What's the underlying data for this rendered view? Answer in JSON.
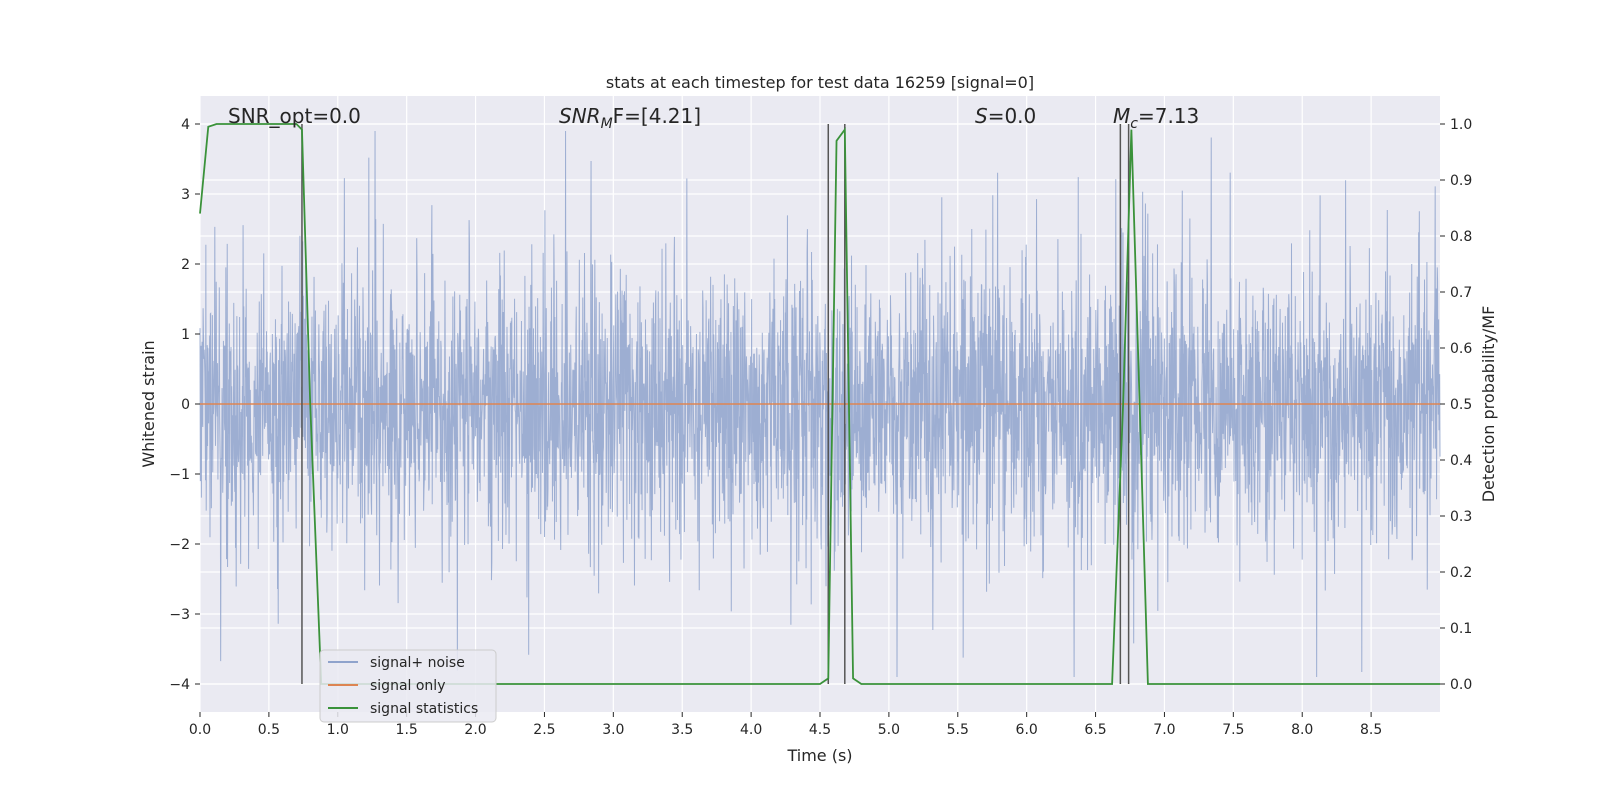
{
  "chart_data": {
    "type": "line",
    "title": "stats at each timestep for test data 16259 [signal=0]",
    "xlabel": "Time (s)",
    "ylabel": "Whitened strain",
    "ylabel_right": "Detection probability/MF",
    "xlim": [
      0.0,
      9.0
    ],
    "ylim": [
      -4.4,
      4.4
    ],
    "ylim_right": [
      -0.05,
      1.05
    ],
    "xticks": [
      0.0,
      0.5,
      1.0,
      1.5,
      2.0,
      2.5,
      3.0,
      3.5,
      4.0,
      4.5,
      5.0,
      5.5,
      6.0,
      6.5,
      7.0,
      7.5,
      8.0,
      8.5
    ],
    "yticks": [
      -4,
      -3,
      -2,
      -1,
      0,
      1,
      2,
      3,
      4
    ],
    "yticks_right": [
      0.0,
      0.1,
      0.2,
      0.3,
      0.4,
      0.5,
      0.6,
      0.7,
      0.8,
      0.9,
      1.0
    ],
    "xtick_labels": [
      "0.0",
      "0.5",
      "1.0",
      "1.5",
      "2.0",
      "2.5",
      "3.0",
      "3.5",
      "4.0",
      "4.5",
      "5.0",
      "5.5",
      "6.0",
      "6.5",
      "7.0",
      "7.5",
      "8.0",
      "8.5"
    ],
    "ytick_labels": [
      "−4",
      "−3",
      "−2",
      "−1",
      "0",
      "1",
      "2",
      "3",
      "4"
    ],
    "ytick_right_labels": [
      "0.0",
      "0.1",
      "0.2",
      "0.3",
      "0.4",
      "0.5",
      "0.6",
      "0.7",
      "0.8",
      "0.9",
      "1.0"
    ],
    "grid": true,
    "legend_position": "lower-left",
    "annotations": [
      {
        "prefix": "SNR_opt=0.0",
        "value": "",
        "x": 0.2,
        "y": 1.0
      },
      {
        "prefix": "SNR_MF=",
        "value": "[4.21]",
        "x": 2.6,
        "y": 1.0
      },
      {
        "prefix": "S=",
        "value": "0.0",
        "x": 5.6,
        "y": 1.0
      },
      {
        "prefix": "M_c=",
        "value": "7.13",
        "x": 6.6,
        "y": 1.0
      }
    ],
    "annotation_parts": {
      "snr_opt": "SNR_opt=0.0",
      "snr_mf_sym": "SNR",
      "snr_mf_sub": "M",
      "snr_mf_tail": "F=[4.21]",
      "s_sym": "S",
      "s_tail": "=0.0",
      "mc_sym": "M",
      "mc_sub": "c",
      "mc_tail": "=7.13"
    },
    "series": [
      {
        "name": "signal+ noise",
        "color": "#8fa3cc",
        "kind": "noise",
        "typical_amplitude": 1.6,
        "peak_amplitude": 3.9
      },
      {
        "name": "signal only",
        "color": "#dd8452",
        "x": [
          0.0,
          9.0
        ],
        "y": [
          0.0,
          0.0
        ]
      },
      {
        "name": "signal statistics",
        "color": "#3a923a",
        "axis": "right",
        "x": [
          0.0,
          0.06,
          0.12,
          0.2,
          0.3,
          0.4,
          0.5,
          0.6,
          0.7,
          0.74,
          0.8,
          0.88,
          0.95,
          1.0,
          1.5,
          2.0,
          2.5,
          3.0,
          3.5,
          4.0,
          4.5,
          4.56,
          4.62,
          4.68,
          4.74,
          4.8,
          5.0,
          5.5,
          6.0,
          6.5,
          6.62,
          6.7,
          6.76,
          6.82,
          6.88,
          7.0,
          7.5,
          8.0,
          8.5,
          9.0
        ],
        "y": [
          0.84,
          0.995,
          1.0,
          1.0,
          1.0,
          1.0,
          1.0,
          1.0,
          1.0,
          0.99,
          0.5,
          0.0,
          0.0,
          0.0,
          0.0,
          0.0,
          0.0,
          0.0,
          0.0,
          0.0,
          0.0,
          0.01,
          0.97,
          0.99,
          0.01,
          0.0,
          0.0,
          0.0,
          0.0,
          0.0,
          0.0,
          0.5,
          0.99,
          0.5,
          0.0,
          0.0,
          0.0,
          0.0,
          0.0,
          0.0
        ]
      }
    ],
    "vertical_markers_right": [
      {
        "x": 0.74,
        "y0": 0.0,
        "y1": 1.0
      },
      {
        "x": 4.56,
        "y0": 0.0,
        "y1": 1.0
      },
      {
        "x": 4.68,
        "y0": 0.0,
        "y1": 1.0
      },
      {
        "x": 6.68,
        "y0": 0.0,
        "y1": 1.0
      },
      {
        "x": 6.74,
        "y0": 0.0,
        "y1": 1.0
      }
    ]
  },
  "colors": {
    "plot_background": "#eaeaf2",
    "grid": "#ffffff",
    "marker": "#555555"
  }
}
